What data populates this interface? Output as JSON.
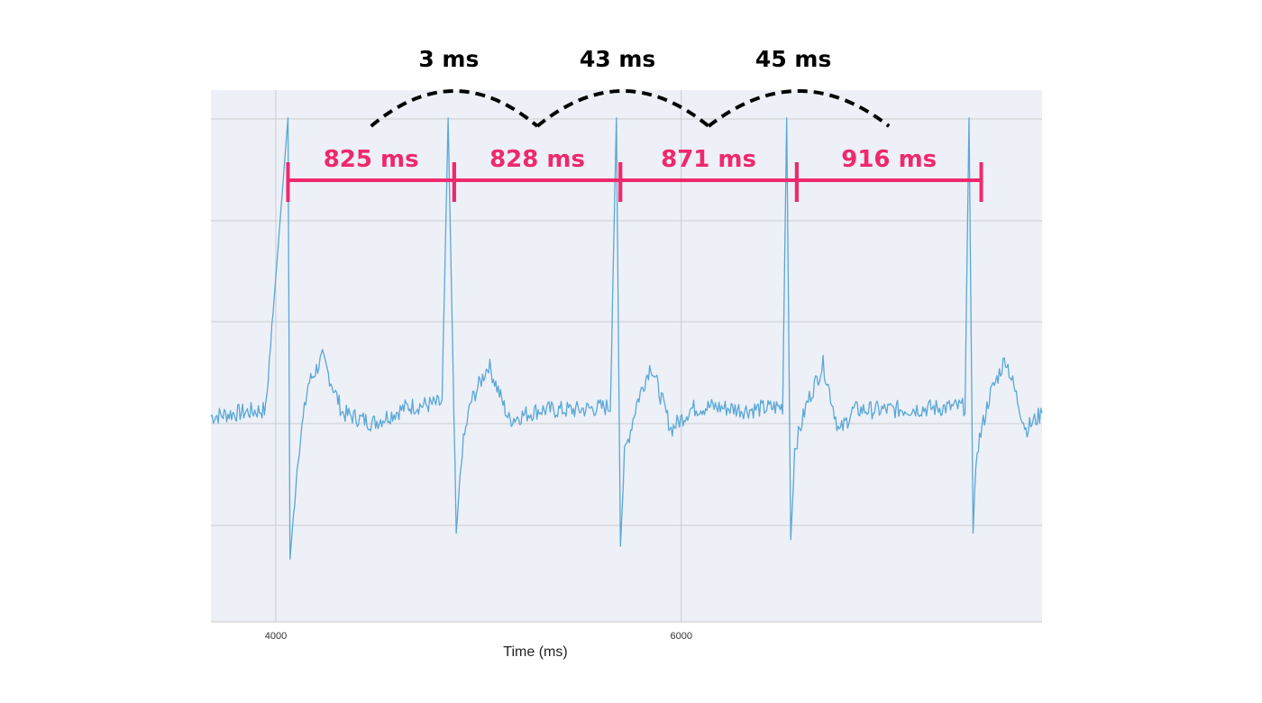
{
  "chart_data": {
    "type": "line",
    "title": "",
    "xlabel": "Time (ms)",
    "ylabel": "",
    "xlim": [
      3680,
      7780
    ],
    "x_ticks": [
      4000,
      6000
    ],
    "grid": true,
    "series": [
      {
        "color": "#5AA7D6",
        "x": [
          3680,
          3800,
          3950,
          4060,
          4070,
          4110,
          4160,
          4230,
          4330,
          4480,
          4650,
          4820,
          4850,
          4890,
          4920,
          4960,
          5050,
          5150,
          5300,
          5480,
          5650,
          5680,
          5700,
          5720,
          5780,
          5850,
          5950,
          6050,
          6150,
          6320,
          6500,
          6520,
          6540,
          6560,
          6620,
          6700,
          6780,
          6850,
          6990,
          7180,
          7400,
          7420,
          7440,
          7460,
          7520,
          7600,
          7700,
          7780
        ],
        "values": [
          0.0,
          0.05,
          0.1,
          4.6,
          -2.2,
          -0.6,
          0.5,
          0.9,
          0.05,
          -0.1,
          0.15,
          0.2,
          4.6,
          -1.8,
          -0.5,
          0.2,
          0.8,
          -0.05,
          0.1,
          0.1,
          0.15,
          4.6,
          -2.0,
          -0.6,
          0.2,
          0.8,
          -0.2,
          0.12,
          0.15,
          0.1,
          0.15,
          4.6,
          -1.9,
          -0.5,
          0.2,
          0.8,
          -0.25,
          0.1,
          0.1,
          0.12,
          0.15,
          4.6,
          -1.8,
          -0.5,
          0.3,
          0.9,
          -0.2,
          0.05
        ]
      }
    ],
    "rr_intervals": [
      {
        "label": "825 ms",
        "start": 4060,
        "end": 4880
      },
      {
        "label": "828 ms",
        "start": 4880,
        "end": 5700
      },
      {
        "label": "871 ms",
        "start": 5700,
        "end": 6570
      },
      {
        "label": "916 ms",
        "start": 6570,
        "end": 7480
      }
    ],
    "rr_differences": [
      {
        "label": "3 ms"
      },
      {
        "label": "43 ms"
      },
      {
        "label": "45 ms"
      }
    ],
    "colors": {
      "signal": "#5AA7D6",
      "interval": "#F0286C",
      "difference": "#000000",
      "plot_background": "#EDF0F7",
      "grid": "#CCCCCC"
    }
  }
}
